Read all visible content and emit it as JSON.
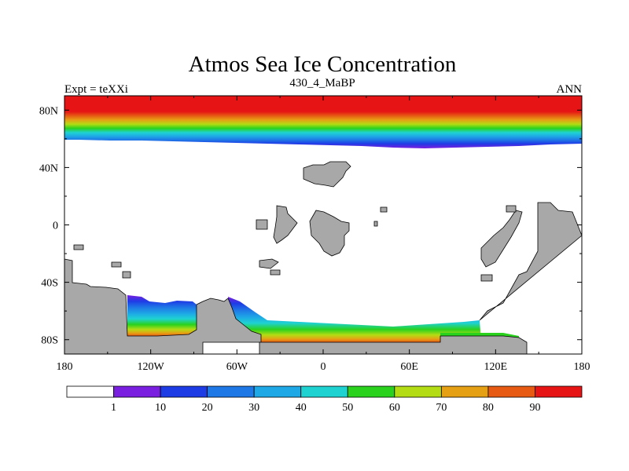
{
  "chart_data": {
    "type": "heatmap",
    "title": "Atmos Sea Ice Concentration",
    "subtitle_left": "Expt = teXXi",
    "subtitle_center": "430_4_MaBP",
    "subtitle_right": "ANN",
    "xlabel": "",
    "ylabel": "",
    "xlim": [
      -180,
      180
    ],
    "ylim": [
      -90,
      90
    ],
    "x_ticks": [
      {
        "value": -180,
        "label": "180"
      },
      {
        "value": -120,
        "label": "120W"
      },
      {
        "value": -60,
        "label": "60W"
      },
      {
        "value": 0,
        "label": "0"
      },
      {
        "value": 60,
        "label": "60E"
      },
      {
        "value": 120,
        "label": "120E"
      },
      {
        "value": 180,
        "label": "180"
      }
    ],
    "y_ticks": [
      {
        "value": 80,
        "label": "80N"
      },
      {
        "value": 40,
        "label": "40N"
      },
      {
        "value": 0,
        "label": "0"
      },
      {
        "value": -40,
        "label": "40S"
      },
      {
        "value": -80,
        "label": "80S"
      }
    ],
    "colorbar": {
      "colors": [
        "#ffffff",
        "#7a1ee0",
        "#1e3ce6",
        "#1e78e6",
        "#1ea8e6",
        "#1ed2d2",
        "#2ad21e",
        "#b4dc14",
        "#e6a014",
        "#e65a14",
        "#e61414"
      ],
      "labels": [
        "1",
        "10",
        "20",
        "30",
        "40",
        "50",
        "60",
        "70",
        "80",
        "90"
      ]
    },
    "land_color": "#a8a8a8",
    "arctic_ice_edge_lat": [
      {
        "lon": -180,
        "lat": 62
      },
      {
        "lon": -120,
        "lat": 60
      },
      {
        "lon": -60,
        "lat": 57
      },
      {
        "lon": 0,
        "lat": 56
      },
      {
        "lon": 60,
        "lat": 53
      },
      {
        "lon": 120,
        "lat": 56
      },
      {
        "lon": 180,
        "lat": 60
      }
    ]
  }
}
